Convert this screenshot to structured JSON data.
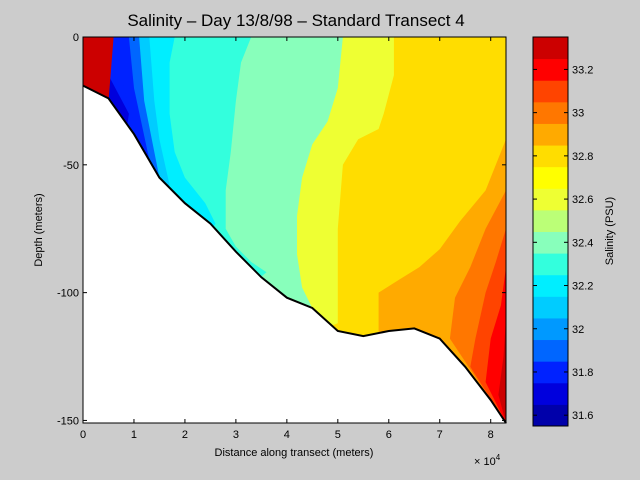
{
  "chart_data": {
    "type": "heatmap",
    "title": "Salinity – Day 13/8/98 – Standard Transect 4",
    "xlabel": "Distance along transect (meters)",
    "ylabel": "Depth (meters)",
    "x_multiplier_label": "× 10",
    "x_multiplier_exponent": "4",
    "xlim": [
      0,
      83000
    ],
    "ylim": [
      -151,
      0
    ],
    "x_ticks": [
      0,
      1,
      2,
      3,
      4,
      5,
      6,
      7,
      8
    ],
    "y_ticks": [
      0,
      -50,
      -100,
      -150
    ],
    "colorbar": {
      "label": "Salinity (PSU)",
      "range": [
        31.55,
        33.35
      ],
      "ticks": [
        31.6,
        31.8,
        32,
        32.2,
        32.4,
        32.6,
        32.8,
        33,
        33.2
      ],
      "levels": [
        31.55,
        31.65,
        31.75,
        31.85,
        31.95,
        32.05,
        32.15,
        32.25,
        32.35,
        32.45,
        32.55,
        32.65,
        32.75,
        32.85,
        32.95,
        33.05,
        33.15,
        33.25,
        33.35
      ],
      "colors": [
        "#0000aa",
        "#0000dd",
        "#0022ff",
        "#0066ff",
        "#0099ff",
        "#00ccff",
        "#00eeff",
        "#33ffdd",
        "#88ffbb",
        "#bbff77",
        "#eeff33",
        "#ffff00",
        "#ffdd00",
        "#ffaa00",
        "#ff7700",
        "#ff4400",
        "#ff0000",
        "#cc0000"
      ]
    },
    "bottom_profile": {
      "x": [
        0,
        5000,
        10000,
        15000,
        20000,
        25000,
        30000,
        35000,
        40000,
        45000,
        50000,
        55000,
        60000,
        65000,
        70000,
        75000,
        80000,
        83000
      ],
      "depth": [
        -19,
        -24,
        -38,
        -55,
        -65,
        -73,
        -84,
        -94,
        -102,
        -106,
        -115,
        -117,
        -115,
        -114,
        -118,
        -129,
        -142,
        -151
      ]
    },
    "salinity_contours": [
      {
        "value": 31.65,
        "x": [
          0,
          0,
          6000
        ],
        "depth": [
          -19,
          0,
          0
        ]
      },
      {
        "value": 31.75,
        "x": [
          4000,
          5000,
          9000
        ],
        "depth": [
          0,
          -15,
          -30
        ]
      },
      {
        "value": 31.85,
        "x": [
          7000,
          8000,
          11000
        ],
        "depth": [
          0,
          -20,
          -40
        ]
      },
      {
        "value": 31.95,
        "x": [
          9000,
          10000,
          13000
        ],
        "depth": [
          0,
          -20,
          -48
        ]
      },
      {
        "value": 32.05,
        "x": [
          11000,
          12000,
          15000
        ],
        "depth": [
          0,
          -25,
          -55
        ]
      },
      {
        "value": 32.15,
        "x": [
          13000,
          14000,
          15000,
          17000
        ],
        "depth": [
          0,
          -25,
          -40,
          -58
        ]
      },
      {
        "value": 32.25,
        "x": [
          18000,
          17000,
          17000,
          18000,
          20000,
          24000,
          26000
        ],
        "depth": [
          0,
          -10,
          -30,
          -45,
          -55,
          -65,
          -73
        ]
      },
      {
        "value": 32.35,
        "x": [
          33000,
          31000,
          30000,
          29000,
          28000,
          28000,
          30000,
          33000,
          36000
        ],
        "depth": [
          0,
          -10,
          -25,
          -45,
          -60,
          -75,
          -82,
          -88,
          -92
        ]
      },
      {
        "value": 32.45,
        "x": [
          43000,
          41000,
          39000,
          37000,
          36000,
          36000,
          37000,
          40000,
          43000
        ],
        "depth": [
          0,
          -15,
          -35,
          -55,
          -65,
          -75,
          -85,
          -92,
          -104
        ]
      },
      {
        "value": 32.55,
        "x": [
          51000,
          50000,
          48000,
          45000,
          43000,
          42000,
          42000,
          43000,
          45000
        ],
        "depth": [
          0,
          -20,
          -33,
          -42,
          -55,
          -70,
          -85,
          -98,
          -106
        ]
      },
      {
        "value": 32.65,
        "x": [
          61000,
          61000,
          59000,
          58000,
          54000,
          51000,
          50000,
          50000
        ],
        "depth": [
          0,
          -15,
          -30,
          -36,
          -40,
          -50,
          -75,
          -112
        ]
      }
    ]
  }
}
